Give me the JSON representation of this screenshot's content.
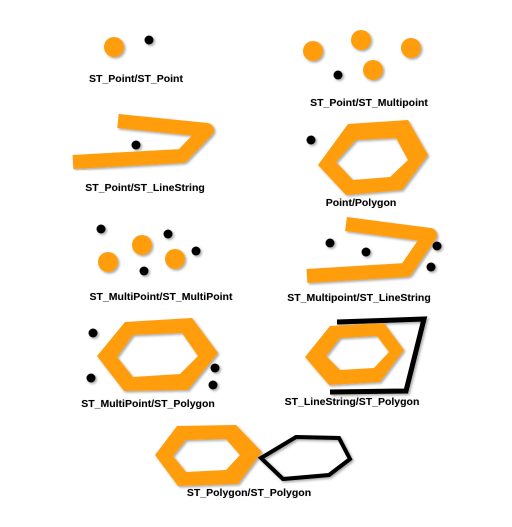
{
  "colors": {
    "orange": "#FF9D0A",
    "dot": "#000000",
    "outline": "#000000",
    "background": "#FFFFFF"
  },
  "panels": [
    {
      "id": "point-point",
      "caption": "ST_Point/ST_Point"
    },
    {
      "id": "point-multipoint",
      "caption": "ST_Point/ST_Multipoint"
    },
    {
      "id": "point-linestring",
      "caption": "ST_Point/ST_LineString"
    },
    {
      "id": "point-polygon",
      "caption": "Point/Polygon"
    },
    {
      "id": "multipoint-multipoint",
      "caption": "ST_MultiPoint/ST_MultiPoint"
    },
    {
      "id": "multipoint-linestring",
      "caption": "ST_Multipoint/ST_LineString"
    },
    {
      "id": "multipoint-polygon",
      "caption": "ST_MultiPoint/ST_Polygon"
    },
    {
      "id": "linestring-polygon",
      "caption": "ST_LineString/ST_Polygon"
    },
    {
      "id": "polygon-polygon",
      "caption": "ST_Polygon/ST_Polygon"
    }
  ]
}
